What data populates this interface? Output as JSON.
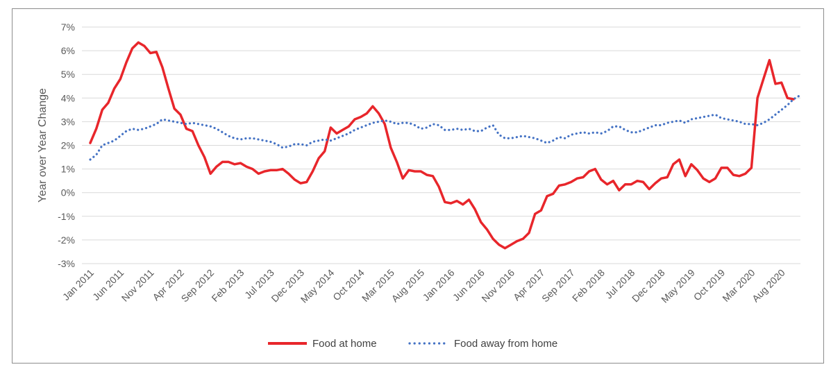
{
  "chart_data": {
    "type": "line",
    "ylabel": "Year over Year Change",
    "xlabel": "",
    "ylim": [
      -3,
      7
    ],
    "ytick_labels": [
      "7%",
      "6%",
      "5%",
      "4%",
      "3%",
      "2%",
      "1%",
      "0%",
      "-1%",
      "-2%",
      "-3%"
    ],
    "ytick_values": [
      7,
      6,
      5,
      4,
      3,
      2,
      1,
      0,
      -1,
      -2,
      -3
    ],
    "xtick_labels": [
      "Jan 2011",
      "Jun 2011",
      "Nov 2011",
      "Apr 2012",
      "Sep 2012",
      "Feb 2013",
      "Jul 2013",
      "Dec 2013",
      "May 2014",
      "Oct 2014",
      "Mar 2015",
      "Aug 2015",
      "Jan 2016",
      "Jun 2016",
      "Nov 2016",
      "Apr 2017",
      "Sep 2017",
      "Feb 2018",
      "Jul 2018",
      "Dec 2018",
      "May 2019",
      "Oct 2019",
      "Mar 2020",
      "Aug 2020"
    ],
    "x_start": "Jan 2011",
    "x_end": "Oct 2020",
    "grid": true,
    "legend_position": "bottom",
    "series": [
      {
        "name": "Food at home",
        "color": "#e8262b",
        "style": "solid",
        "values": [
          2.1,
          2.7,
          3.5,
          3.8,
          4.4,
          4.8,
          5.5,
          6.1,
          6.35,
          6.2,
          5.9,
          5.95,
          5.3,
          4.4,
          3.55,
          3.3,
          2.7,
          2.6,
          2.0,
          1.5,
          0.8,
          1.1,
          1.3,
          1.3,
          1.2,
          1.25,
          1.1,
          1.0,
          0.8,
          0.9,
          0.95,
          0.95,
          1.0,
          0.8,
          0.55,
          0.4,
          0.45,
          0.9,
          1.45,
          1.75,
          2.75,
          2.5,
          2.65,
          2.8,
          3.1,
          3.2,
          3.35,
          3.65,
          3.35,
          2.9,
          1.9,
          1.3,
          0.6,
          0.95,
          0.9,
          0.9,
          0.75,
          0.7,
          0.25,
          -0.4,
          -0.45,
          -0.35,
          -0.5,
          -0.3,
          -0.7,
          -1.25,
          -1.55,
          -1.95,
          -2.2,
          -2.35,
          -2.2,
          -2.05,
          -1.95,
          -1.7,
          -0.9,
          -0.75,
          -0.15,
          -0.05,
          0.3,
          0.35,
          0.45,
          0.6,
          0.65,
          0.9,
          1.0,
          0.55,
          0.35,
          0.5,
          0.1,
          0.35,
          0.35,
          0.5,
          0.45,
          0.15,
          0.4,
          0.6,
          0.65,
          1.2,
          1.4,
          0.7,
          1.2,
          0.95,
          0.6,
          0.45,
          0.6,
          1.05,
          1.05,
          0.75,
          0.7,
          0.8,
          1.05,
          4.0,
          4.8,
          5.6,
          4.6,
          4.65,
          4.0,
          3.95
        ]
      },
      {
        "name": "Food away from home",
        "color": "#4472c4",
        "style": "dotted",
        "values": [
          1.4,
          1.6,
          2.0,
          2.1,
          2.2,
          2.4,
          2.6,
          2.7,
          2.65,
          2.7,
          2.8,
          2.9,
          3.1,
          3.05,
          3.0,
          2.95,
          2.9,
          2.95,
          2.9,
          2.85,
          2.8,
          2.7,
          2.55,
          2.4,
          2.3,
          2.25,
          2.3,
          2.3,
          2.25,
          2.2,
          2.15,
          2.05,
          1.9,
          1.95,
          2.05,
          2.05,
          2.0,
          2.15,
          2.2,
          2.25,
          2.2,
          2.3,
          2.4,
          2.5,
          2.65,
          2.75,
          2.85,
          2.95,
          3.0,
          3.05,
          3.0,
          2.9,
          2.95,
          2.95,
          2.85,
          2.7,
          2.75,
          2.9,
          2.85,
          2.65,
          2.65,
          2.7,
          2.65,
          2.7,
          2.6,
          2.6,
          2.75,
          2.85,
          2.45,
          2.3,
          2.3,
          2.35,
          2.4,
          2.35,
          2.3,
          2.2,
          2.1,
          2.2,
          2.35,
          2.3,
          2.45,
          2.5,
          2.55,
          2.5,
          2.55,
          2.5,
          2.6,
          2.8,
          2.8,
          2.65,
          2.55,
          2.55,
          2.65,
          2.75,
          2.85,
          2.85,
          2.95,
          3.0,
          3.05,
          2.95,
          3.1,
          3.15,
          3.2,
          3.25,
          3.3,
          3.15,
          3.1,
          3.05,
          3.0,
          2.9,
          2.9,
          2.85,
          2.95,
          3.1,
          3.3,
          3.5,
          3.7,
          3.95,
          4.1
        ]
      }
    ]
  }
}
